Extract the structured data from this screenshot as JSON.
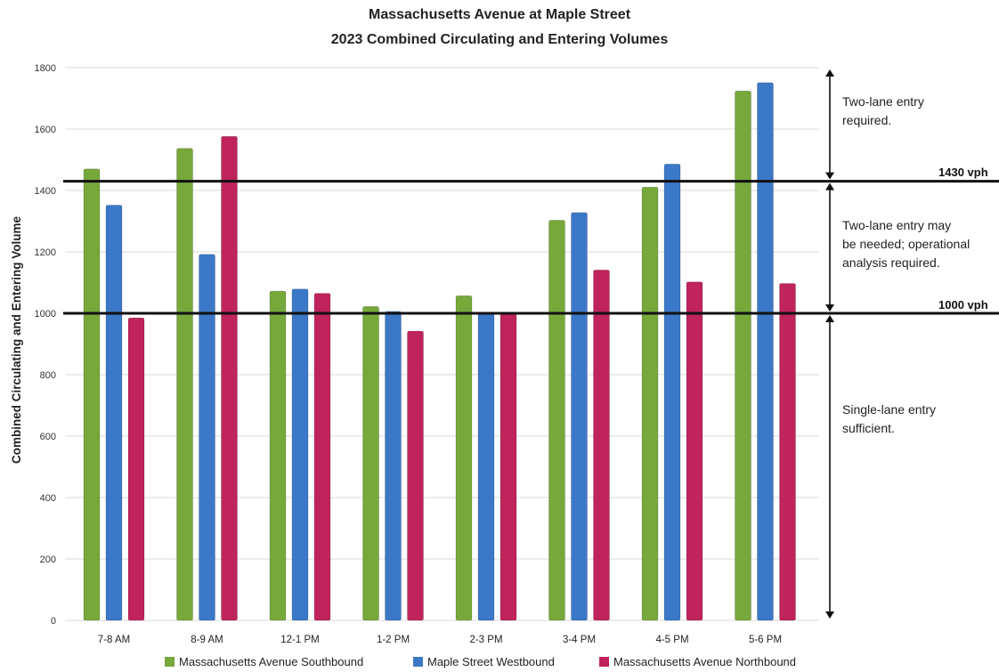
{
  "chart_data": {
    "type": "bar",
    "title": "Massachusetts Avenue at Maple Street",
    "subtitle": "2023 Combined Circulating and Entering Volumes",
    "xlabel": "",
    "ylabel": "Combined Circulating and Entering Volume",
    "ylim": [
      0,
      1800
    ],
    "yticks": [
      0,
      200,
      400,
      600,
      800,
      1000,
      1200,
      1400,
      1600,
      1800
    ],
    "grid": true,
    "legend_position": "bottom",
    "categories": [
      "7-8 AM",
      "8-9 AM",
      "12-1 PM",
      "1-2 PM",
      "2-3 PM",
      "3-4 PM",
      "4-5 PM",
      "5-6 PM"
    ],
    "series": [
      {
        "name": "Massachusetts Avenue Southbound",
        "color": "#77a83b",
        "values": [
          1470,
          1537,
          1072,
          1022,
          1057,
          1303,
          1411,
          1724
        ]
      },
      {
        "name": "Maple Street Westbound",
        "color": "#3b78c8",
        "values": [
          1352,
          1192,
          1079,
          1006,
          999,
          1328,
          1486,
          1751
        ]
      },
      {
        "name": "Massachusetts Avenue Northbound",
        "color": "#c0245c",
        "values": [
          985,
          1576,
          1065,
          942,
          998,
          1141,
          1102,
          1097
        ]
      }
    ],
    "thresholds": [
      {
        "value": 1430,
        "label": "1430 vph"
      },
      {
        "value": 1000,
        "label": "1000 vph"
      }
    ],
    "annotations": [
      {
        "text": [
          "Two-lane entry",
          "required."
        ],
        "from": 1800,
        "to": 1430
      },
      {
        "text": [
          "Two-lane entry may",
          "be needed; operational",
          "analysis required."
        ],
        "from": 1430,
        "to": 1000
      },
      {
        "text": [
          "Single-lane entry",
          "sufficient."
        ],
        "from": 1000,
        "to": 0
      }
    ]
  }
}
